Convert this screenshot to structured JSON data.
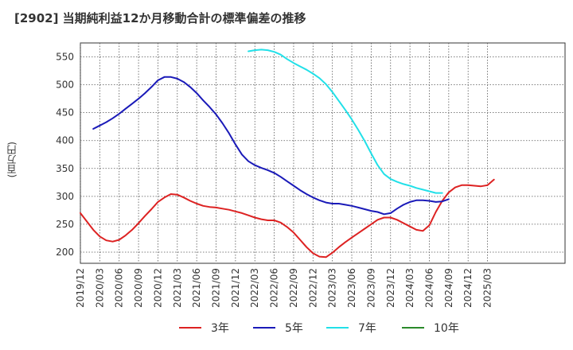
{
  "chart_data": {
    "type": "line",
    "title": "[2902]  当期純利益12か月移動合計の標準偏差の推移",
    "ylabel": "(百万円)",
    "xlabel": "",
    "ylim": [
      180,
      575
    ],
    "yticks": [
      200,
      250,
      300,
      350,
      400,
      450,
      500,
      550
    ],
    "xlim": [
      0,
      75
    ],
    "xticks": [
      {
        "i": 0,
        "label": "2019/12"
      },
      {
        "i": 3,
        "label": "2020/03"
      },
      {
        "i": 6,
        "label": "2020/06"
      },
      {
        "i": 9,
        "label": "2020/09"
      },
      {
        "i": 12,
        "label": "2020/12"
      },
      {
        "i": 15,
        "label": "2021/03"
      },
      {
        "i": 18,
        "label": "2021/06"
      },
      {
        "i": 21,
        "label": "2021/09"
      },
      {
        "i": 24,
        "label": "2021/12"
      },
      {
        "i": 27,
        "label": "2022/03"
      },
      {
        "i": 30,
        "label": "2022/06"
      },
      {
        "i": 33,
        "label": "2022/09"
      },
      {
        "i": 36,
        "label": "2022/12"
      },
      {
        "i": 39,
        "label": "2023/03"
      },
      {
        "i": 42,
        "label": "2023/06"
      },
      {
        "i": 45,
        "label": "2023/09"
      },
      {
        "i": 48,
        "label": "2023/12"
      },
      {
        "i": 51,
        "label": "2024/03"
      },
      {
        "i": 54,
        "label": "2024/06"
      },
      {
        "i": 57,
        "label": "2024/09"
      },
      {
        "i": 60,
        "label": "2024/12"
      },
      {
        "i": 63,
        "label": "2025/03"
      }
    ],
    "grid": true,
    "legend_position": "bottom",
    "series": [
      {
        "name": "3年",
        "color": "#dd2222",
        "start": 0,
        "values": [
          270,
          255,
          240,
          228,
          221,
          219,
          222,
          230,
          240,
          252,
          265,
          277,
          290,
          298,
          304,
          303,
          298,
          292,
          287,
          283,
          281,
          280,
          278,
          276,
          273,
          270,
          266,
          262,
          259,
          257,
          257,
          253,
          245,
          235,
          222,
          209,
          198,
          192,
          191,
          199,
          209,
          218,
          226,
          234,
          242,
          250,
          258,
          262,
          262,
          258,
          252,
          246,
          240,
          238,
          248,
          272,
          292,
          307,
          316,
          320,
          320,
          319,
          318,
          320,
          330
        ]
      },
      {
        "name": "5年",
        "color": "#1a1ab8",
        "start": 2,
        "values": [
          421,
          427,
          433,
          440,
          448,
          457,
          466,
          475,
          485,
          496,
          508,
          514,
          514,
          511,
          505,
          496,
          485,
          472,
          460,
          447,
          431,
          413,
          393,
          375,
          363,
          356,
          351,
          347,
          342,
          335,
          327,
          319,
          311,
          304,
          298,
          293,
          289,
          287,
          287,
          285,
          283,
          280,
          277,
          274,
          272,
          268,
          270,
          278,
          285,
          290,
          293,
          293,
          292,
          290,
          291,
          295
        ]
      },
      {
        "name": "7年",
        "color": "#22e0e8",
        "start": 26,
        "values": [
          560,
          562,
          563,
          562,
          559,
          554,
          546,
          539,
          533,
          527,
          520,
          512,
          501,
          487,
          471,
          455,
          438,
          419,
          399,
          377,
          356,
          340,
          331,
          326,
          322,
          319,
          315,
          312,
          309,
          306,
          306
        ]
      },
      {
        "name": "10年",
        "color": "#2a8a2a",
        "start": 0,
        "values": []
      }
    ]
  }
}
